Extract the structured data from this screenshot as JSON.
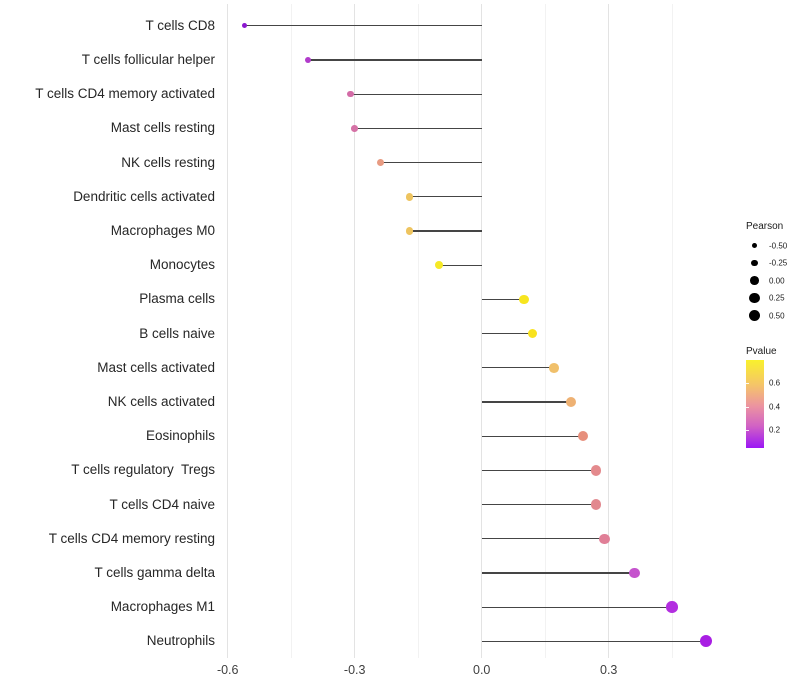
{
  "chart_data": {
    "type": "lollipop",
    "title": "",
    "xlabel": "",
    "ylabel": "",
    "x_tick_labels": [
      "-0.6",
      "-0.3",
      "0.0",
      "0.3"
    ],
    "x_ticks_major": [
      -0.6,
      -0.3,
      0.0,
      0.3
    ],
    "x_ticks_minor": [
      -0.45,
      -0.15,
      0.15,
      0.45
    ],
    "xlim": [
      -0.617,
      0.586
    ],
    "grid": "vertical-only",
    "legend_position": "right",
    "rows": [
      {
        "label": "T cells CD8",
        "pearson": -0.56,
        "pvalue_est": 0.08,
        "color": "#8b18cf"
      },
      {
        "label": "T cells follicular helper",
        "pearson": -0.41,
        "pvalue_est": 0.18,
        "color": "#b13bcb"
      },
      {
        "label": "T cells CD4 memory activated",
        "pearson": -0.31,
        "pvalue_est": 0.33,
        "color": "#d36ba6"
      },
      {
        "label": "Mast cells resting",
        "pearson": -0.3,
        "pvalue_est": 0.33,
        "color": "#d572a6"
      },
      {
        "label": "NK cells resting",
        "pearson": -0.24,
        "pvalue_est": 0.45,
        "color": "#e89b82"
      },
      {
        "label": "Dendritic cells activated",
        "pearson": -0.17,
        "pvalue_est": 0.55,
        "color": "#eec45f"
      },
      {
        "label": "Macrophages M0",
        "pearson": -0.17,
        "pvalue_est": 0.55,
        "color": "#eec45f"
      },
      {
        "label": "Monocytes",
        "pearson": -0.1,
        "pvalue_est": 0.68,
        "color": "#f6e926"
      },
      {
        "label": "Plasma cells",
        "pearson": 0.1,
        "pvalue_est": 0.68,
        "color": "#f7e51f"
      },
      {
        "label": "B cells naive",
        "pearson": 0.12,
        "pvalue_est": 0.67,
        "color": "#f8e21e"
      },
      {
        "label": "Mast cells activated",
        "pearson": 0.17,
        "pvalue_est": 0.55,
        "color": "#f0c06b"
      },
      {
        "label": "NK cells activated",
        "pearson": 0.21,
        "pvalue_est": 0.5,
        "color": "#eeb173"
      },
      {
        "label": "Eosinophils",
        "pearson": 0.24,
        "pvalue_est": 0.42,
        "color": "#e78f7c"
      },
      {
        "label": "T cells regulatory  Tregs",
        "pearson": 0.27,
        "pvalue_est": 0.4,
        "color": "#e48a8d"
      },
      {
        "label": "T cells CD4 naive",
        "pearson": 0.27,
        "pvalue_est": 0.4,
        "color": "#e2888f"
      },
      {
        "label": "T cells CD4 memory resting",
        "pearson": 0.29,
        "pvalue_est": 0.38,
        "color": "#e07f97"
      },
      {
        "label": "T cells gamma delta",
        "pearson": 0.36,
        "pvalue_est": 0.25,
        "color": "#c553cd"
      },
      {
        "label": "Macrophages M1",
        "pearson": 0.45,
        "pvalue_est": 0.12,
        "color": "#b32fe0"
      },
      {
        "label": "Neutrophils",
        "pearson": 0.53,
        "pvalue_est": 0.1,
        "color": "#a81ee3"
      }
    ],
    "legend": {
      "size": {
        "title": "Pearson",
        "entries": [
          {
            "label": "-0.50",
            "value": -0.5
          },
          {
            "label": "-0.25",
            "value": -0.25
          },
          {
            "label": "0.00",
            "value": 0.0
          },
          {
            "label": "0.25",
            "value": 0.25
          },
          {
            "label": "0.50",
            "value": 0.5
          }
        ]
      },
      "color": {
        "title": "Pvalue",
        "tick_labels": [
          "0.6",
          "0.4",
          "0.2"
        ],
        "gradient_stops": [
          "#f9f12d",
          "#f5c568",
          "#ec94a0",
          "#d162c4",
          "#9b16f5"
        ],
        "range_top": 0.79,
        "range_bottom": 0.05
      }
    },
    "colors": {
      "stem": "#454545",
      "grid_major": "#e3e3e3",
      "grid_minor": "#f2f2f2",
      "axis_text": "#404040",
      "label_text": "#262626",
      "background": "#ffffff"
    }
  }
}
